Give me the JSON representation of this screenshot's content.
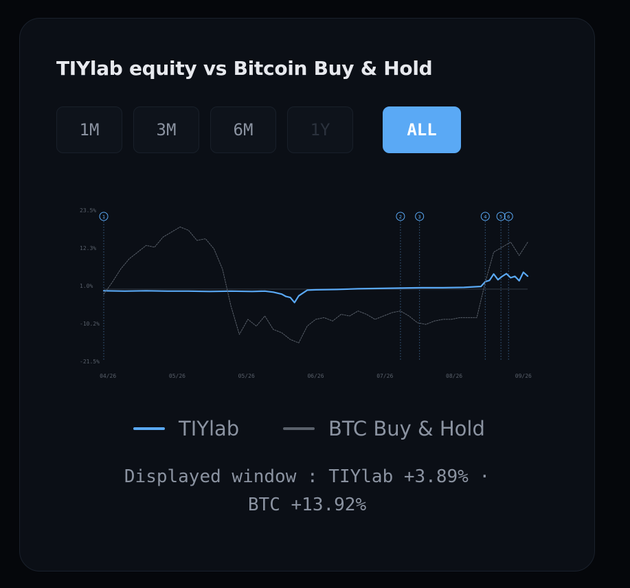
{
  "title": "TIYlab equity vs Bitcoin Buy & Hold",
  "range_tabs": [
    {
      "label": "1M",
      "state": "enabled"
    },
    {
      "label": "3M",
      "state": "enabled"
    },
    {
      "label": "6M",
      "state": "enabled"
    },
    {
      "label": "1Y",
      "state": "disabled"
    },
    {
      "label": "ALL",
      "state": "active"
    }
  ],
  "colors": {
    "accent": "#5aa9f5",
    "btc_line": "#5a616b",
    "card_bg": "#0b0f16",
    "page_bg": "#05070b"
  },
  "chart_data": {
    "type": "line",
    "title": "",
    "xlabel": "",
    "ylabel": "",
    "ylim": [
      -21.5,
      23.5
    ],
    "y_ticks": [
      {
        "label": "23.5%",
        "value": 23.5
      },
      {
        "label": "12.3%",
        "value": 12.3
      },
      {
        "label": "1.0%",
        "value": 1.0
      },
      {
        "label": "-10.2%",
        "value": -10.2
      },
      {
        "label": "-21.5%",
        "value": -21.5
      }
    ],
    "x_ticks": [
      "04/26",
      "05/26",
      "05/26",
      "06/26",
      "07/26",
      "08/26",
      "09/26"
    ],
    "baseline": 0,
    "markers": [
      {
        "label": "1",
        "x": 0.0
      },
      {
        "label": "2",
        "x": 0.7
      },
      {
        "label": "3",
        "x": 0.745
      },
      {
        "label": "4",
        "x": 0.9
      },
      {
        "label": "5",
        "x": 0.937
      },
      {
        "label": "6",
        "x": 0.955
      }
    ],
    "series": [
      {
        "name": "TIYlab",
        "color": "#5aa9f5",
        "x": [
          0,
          0.05,
          0.1,
          0.15,
          0.2,
          0.25,
          0.3,
          0.35,
          0.38,
          0.4,
          0.42,
          0.43,
          0.44,
          0.45,
          0.46,
          0.48,
          0.5,
          0.55,
          0.6,
          0.65,
          0.7,
          0.75,
          0.8,
          0.85,
          0.89,
          0.9,
          0.91,
          0.92,
          0.93,
          0.94,
          0.95,
          0.96,
          0.97,
          0.98,
          0.99,
          1.0
        ],
        "y": [
          -0.5,
          -0.6,
          -0.5,
          -0.6,
          -0.6,
          -0.7,
          -0.6,
          -0.7,
          -0.6,
          -0.9,
          -1.5,
          -2.2,
          -2.5,
          -4.0,
          -2.0,
          -0.3,
          -0.2,
          -0.1,
          0.1,
          0.2,
          0.3,
          0.4,
          0.4,
          0.5,
          0.8,
          2.2,
          2.6,
          4.5,
          2.8,
          3.8,
          4.6,
          3.4,
          3.8,
          2.5,
          5.0,
          3.89
        ]
      },
      {
        "name": "BTC Buy & Hold",
        "color": "#5a616b",
        "dashed": true,
        "x": [
          0,
          0.02,
          0.04,
          0.06,
          0.08,
          0.1,
          0.12,
          0.14,
          0.16,
          0.18,
          0.2,
          0.22,
          0.24,
          0.26,
          0.28,
          0.3,
          0.32,
          0.34,
          0.36,
          0.38,
          0.4,
          0.42,
          0.44,
          0.46,
          0.48,
          0.5,
          0.52,
          0.54,
          0.56,
          0.58,
          0.6,
          0.62,
          0.64,
          0.66,
          0.68,
          0.7,
          0.72,
          0.74,
          0.76,
          0.78,
          0.8,
          0.82,
          0.84,
          0.86,
          0.88,
          0.9,
          0.92,
          0.94,
          0.96,
          0.98,
          1.0
        ],
        "y": [
          -1.5,
          2.0,
          6.0,
          9.0,
          11.0,
          13.0,
          12.5,
          15.5,
          17.0,
          18.5,
          17.5,
          14.5,
          15.0,
          12.0,
          6.0,
          -5.0,
          -13.5,
          -9.0,
          -11.0,
          -8.0,
          -12.0,
          -13.0,
          -15.0,
          -16.0,
          -11.0,
          -9.0,
          -8.5,
          -9.5,
          -7.5,
          -8.0,
          -6.5,
          -7.5,
          -9.0,
          -8.0,
          -7.0,
          -6.5,
          -8.0,
          -10.0,
          -10.5,
          -9.5,
          -9.0,
          -9.0,
          -8.5,
          -8.5,
          -8.5,
          2.0,
          11.0,
          12.5,
          14.0,
          10.0,
          13.92
        ]
      }
    ]
  },
  "legend": [
    {
      "label": "TIYlab",
      "color": "#5aa9f5"
    },
    {
      "label": "BTC Buy & Hold",
      "color": "#5a616b"
    }
  ],
  "summary": {
    "line1": "Displayed window : TIYlab +3.89% ·",
    "line2": "BTC +13.92%"
  }
}
